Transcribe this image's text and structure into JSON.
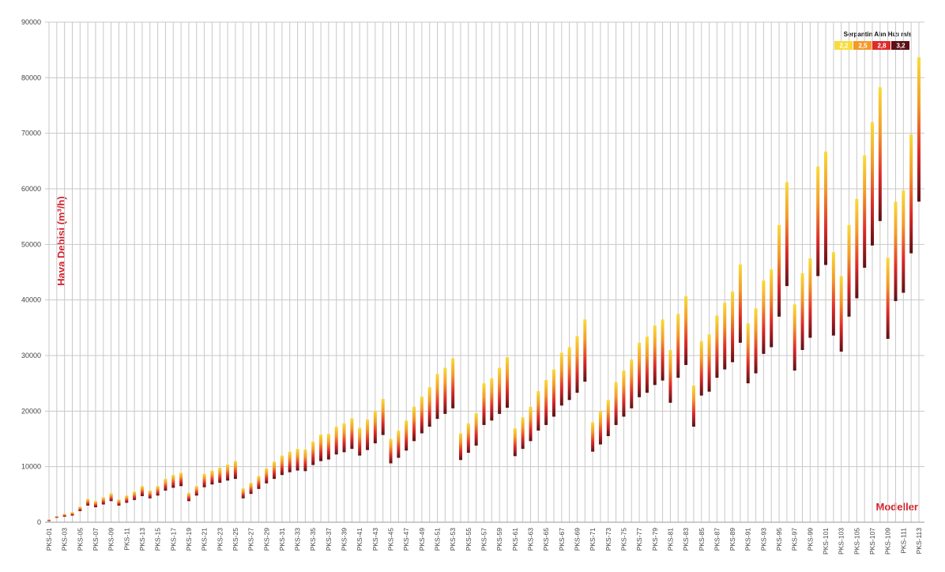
{
  "chart_data": {
    "type": "range-bar",
    "y_label": "Hava Debisi (m³/h)",
    "x_label": "Modeller",
    "legend": {
      "title": "Serpantin Alın Hızı m/s",
      "items": [
        {
          "label": "2,2",
          "color": "#f8dc3a"
        },
        {
          "label": "2,5",
          "color": "#f39a2a"
        },
        {
          "label": "2,8",
          "color": "#de2b2a"
        },
        {
          "label": "3,2",
          "color": "#5c1015"
        }
      ]
    },
    "ylim": [
      0,
      90000
    ],
    "yticks": [
      0,
      10000,
      20000,
      30000,
      40000,
      50000,
      60000,
      70000,
      80000,
      90000
    ],
    "grid": true,
    "categories": [
      "PKS-01",
      null,
      "PKS-03",
      null,
      "PKS-05",
      null,
      "PKS-07",
      null,
      "PKS-09",
      null,
      "PKS-11",
      null,
      "PKS-13",
      null,
      "PKS-15",
      null,
      "PKS-17",
      null,
      "PKS-19",
      null,
      "PKS-21",
      null,
      "PKS-23",
      null,
      "PKS-25",
      null,
      "PKS-27",
      null,
      "PKS-29",
      null,
      "PKS-31",
      null,
      "PKS-33",
      null,
      "PKS-35",
      null,
      "PKS-37",
      null,
      "PKS-39",
      null,
      "PKS-41",
      null,
      "PKS-43",
      null,
      "PKS-45",
      null,
      "PKS-47",
      null,
      "PKS-49",
      null,
      "PKS-51",
      null,
      "PKS-53",
      null,
      "PKS-55",
      null,
      "PKS-57",
      null,
      "PKS-59",
      null,
      "PKS-61",
      null,
      "PKS-63",
      null,
      "PKS-65",
      null,
      "PKS-67",
      null,
      "PKS-69",
      null,
      "PKS-71",
      null,
      "PKS-73",
      null,
      "PKS-75",
      null,
      "PKS-77",
      null,
      "PKS-79",
      null,
      "PKS-81",
      null,
      "PKS-83",
      null,
      "PKS-85",
      null,
      "PKS-87",
      null,
      "PKS-89",
      null,
      "PKS-91",
      null,
      "PKS-93",
      null,
      "PKS-95",
      null,
      "PKS-97",
      null,
      "PKS-99",
      null,
      "PKS-101",
      null,
      "PKS-103",
      null,
      "PKS-105",
      null,
      "PKS-107",
      null,
      "PKS-109",
      null,
      "PKS-111",
      null,
      "PKS-113"
    ],
    "low": [
      200,
      800,
      1000,
      1200,
      2000,
      3000,
      2700,
      3200,
      3800,
      3000,
      3500,
      4000,
      4700,
      4300,
      4800,
      5700,
      6200,
      6500,
      3800,
      4800,
      6300,
      6800,
      7100,
      7500,
      7800,
      4300,
      5100,
      6000,
      7000,
      7800,
      8500,
      9000,
      9300,
      9200,
      10300,
      11000,
      11300,
      12200,
      12600,
      13200,
      12000,
      13000,
      14200,
      15700,
      10600,
      11600,
      12900,
      14600,
      16000,
      17200,
      18600,
      19500,
      20500,
      11200,
      12500,
      13800,
      17500,
      18300,
      19500,
      20600,
      11900,
      13200,
      14600,
      16500,
      17500,
      19000,
      21000,
      22000,
      23300,
      25300,
      12700,
      14000,
      15500,
      17500,
      19000,
      20500,
      22500,
      23300,
      24700,
      25500,
      21500,
      26000,
      28300,
      17200,
      22800,
      23500,
      26000,
      27500,
      28800,
      32300,
      25000,
      26800,
      30300,
      31500,
      37000,
      42500,
      27300,
      31000,
      33200,
      44300,
      46300,
      33600,
      30700,
      37000,
      40300,
      45800,
      49800,
      54200,
      33000,
      39800,
      41300,
      48400,
      57700
    ],
    "high": [
      500,
      1100,
      1500,
      1800,
      2800,
      4200,
      3800,
      4500,
      5200,
      4100,
      4800,
      5500,
      6500,
      5700,
      6500,
      7800,
      8500,
      8900,
      5300,
      6500,
      8700,
      9300,
      9800,
      10400,
      11000,
      6100,
      7100,
      8300,
      9700,
      10900,
      12000,
      12700,
      13200,
      13100,
      14500,
      15800,
      15900,
      17200,
      17800,
      18700,
      17000,
      18500,
      20000,
      22200,
      15000,
      16500,
      18300,
      20800,
      22600,
      24300,
      26700,
      27800,
      29500,
      16000,
      17800,
      19600,
      25000,
      25900,
      27800,
      29700,
      16900,
      18900,
      20800,
      23600,
      25600,
      27500,
      30500,
      31500,
      33500,
      36500,
      18000,
      20000,
      22000,
      25200,
      27300,
      29300,
      32300,
      33400,
      35400,
      36500,
      31000,
      37500,
      40700,
      24600,
      32600,
      33800,
      37200,
      39500,
      41500,
      46400,
      35800,
      38500,
      43500,
      45500,
      53500,
      61200,
      39200,
      44800,
      47500,
      64000,
      66700,
      48600,
      44300,
      53500,
      58200,
      66000,
      72000,
      78300,
      47600,
      57700,
      59700,
      69800,
      83700
    ]
  }
}
